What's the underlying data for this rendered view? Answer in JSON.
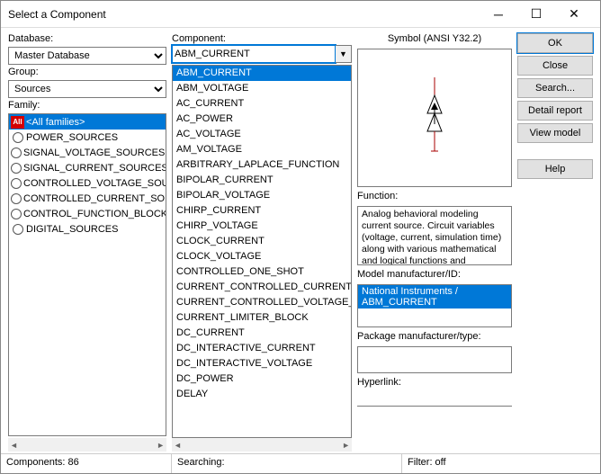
{
  "window": {
    "title": "Select a Component"
  },
  "labels": {
    "database": "Database:",
    "group": "Group:",
    "family": "Family:",
    "component": "Component:",
    "symbol": "Symbol (ANSI Y32.2)",
    "function": "Function:",
    "model": "Model manufacturer/ID:",
    "package": "Package manufacturer/type:",
    "hyperlink": "Hyperlink:"
  },
  "database": {
    "value": "Master Database"
  },
  "group": {
    "value": "Sources"
  },
  "family": {
    "items": [
      {
        "icon": "all",
        "label": "<All families>",
        "selected": true
      },
      {
        "icon": "circ",
        "label": "POWER_SOURCES"
      },
      {
        "icon": "circ",
        "label": "SIGNAL_VOLTAGE_SOURCES"
      },
      {
        "icon": "circ",
        "label": "SIGNAL_CURRENT_SOURCES"
      },
      {
        "icon": "circ",
        "label": "CONTROLLED_VOLTAGE_SOUR"
      },
      {
        "icon": "circ",
        "label": "CONTROLLED_CURRENT_SOUR"
      },
      {
        "icon": "circ",
        "label": "CONTROL_FUNCTION_BLOCKS"
      },
      {
        "icon": "circ",
        "label": "DIGITAL_SOURCES"
      }
    ]
  },
  "component": {
    "value": "ABM_CURRENT",
    "items": [
      "ABM_CURRENT",
      "ABM_VOLTAGE",
      "AC_CURRENT",
      "AC_POWER",
      "AC_VOLTAGE",
      "AM_VOLTAGE",
      "ARBITRARY_LAPLACE_FUNCTION",
      "BIPOLAR_CURRENT",
      "BIPOLAR_VOLTAGE",
      "CHIRP_CURRENT",
      "CHIRP_VOLTAGE",
      "CLOCK_CURRENT",
      "CLOCK_VOLTAGE",
      "CONTROLLED_ONE_SHOT",
      "CURRENT_CONTROLLED_CURRENT_S",
      "CURRENT_CONTROLLED_VOLTAGE_SO",
      "CURRENT_LIMITER_BLOCK",
      "DC_CURRENT",
      "DC_INTERACTIVE_CURRENT",
      "DC_INTERACTIVE_VOLTAGE",
      "DC_POWER",
      "DELAY"
    ]
  },
  "function_text": "Analog behavioral modeling current source. Circuit variables (voltage, current, simulation time) along with various mathematical and logical functions and operators can be used to",
  "model_value": "National Instruments / ABM_CURRENT",
  "buttons": {
    "ok": "OK",
    "close": "Close",
    "search": "Search...",
    "detail": "Detail report",
    "view": "View model",
    "help": "Help"
  },
  "status": {
    "count": "Components: 86",
    "searching": "Searching:",
    "filter": "Filter: off"
  }
}
